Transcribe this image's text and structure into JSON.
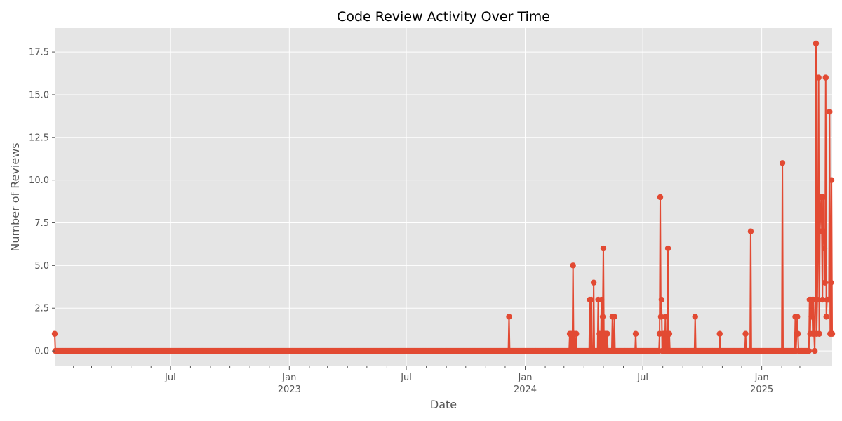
{
  "chart_data": {
    "type": "line",
    "title": "Code Review Activity Over Time",
    "xlabel": "Date",
    "ylabel": "Number of Reviews",
    "xlim": [
      "2022-01-03",
      "2025-04-20"
    ],
    "ylim": [
      -0.9,
      18.9
    ],
    "y_ticks": [
      0.0,
      2.5,
      5.0,
      7.5,
      10.0,
      12.5,
      15.0,
      17.5
    ],
    "y_tick_labels": [
      "0.0",
      "2.5",
      "5.0",
      "7.5",
      "10.0",
      "12.5",
      "15.0",
      "17.5"
    ],
    "x_major_ticks": [
      {
        "date": "2022-07-01",
        "label": "Jul",
        "year": ""
      },
      {
        "date": "2023-01-01",
        "label": "Jan",
        "year": "2023"
      },
      {
        "date": "2023-07-01",
        "label": "Jul",
        "year": ""
      },
      {
        "date": "2024-01-01",
        "label": "Jan",
        "year": "2024"
      },
      {
        "date": "2024-07-01",
        "label": "Jul",
        "year": ""
      },
      {
        "date": "2025-01-01",
        "label": "Jan",
        "year": "2025"
      }
    ],
    "baseline_value": 0,
    "grid": true,
    "colors": {
      "line": "#E24A33",
      "plot_bg": "#E5E5E5",
      "grid": "#FFFFFF"
    },
    "series": [
      {
        "points": [
          [
            "2022-01-03",
            1
          ],
          [
            "2022-01-04",
            0
          ],
          [
            "2023-12-07",
            2
          ],
          [
            "2024-03-10",
            1
          ],
          [
            "2024-03-12",
            1
          ],
          [
            "2024-03-15",
            5
          ],
          [
            "2024-03-17",
            1
          ],
          [
            "2024-03-20",
            1
          ],
          [
            "2024-04-10",
            3
          ],
          [
            "2024-04-12",
            3
          ],
          [
            "2024-04-16",
            4
          ],
          [
            "2024-04-23",
            3
          ],
          [
            "2024-04-25",
            1
          ],
          [
            "2024-04-28",
            3
          ],
          [
            "2024-04-30",
            2
          ],
          [
            "2024-05-01",
            6
          ],
          [
            "2024-05-03",
            1
          ],
          [
            "2024-05-05",
            1
          ],
          [
            "2024-05-07",
            1
          ],
          [
            "2024-05-15",
            2
          ],
          [
            "2024-05-18",
            2
          ],
          [
            "2024-06-20",
            1
          ],
          [
            "2024-07-27",
            1
          ],
          [
            "2024-07-28",
            9
          ],
          [
            "2024-07-29",
            2
          ],
          [
            "2024-07-30",
            3
          ],
          [
            "2024-08-02",
            1
          ],
          [
            "2024-08-05",
            2
          ],
          [
            "2024-08-07",
            1
          ],
          [
            "2024-08-09",
            6
          ],
          [
            "2024-08-11",
            1
          ],
          [
            "2024-09-20",
            2
          ],
          [
            "2024-10-28",
            1
          ],
          [
            "2024-12-07",
            1
          ],
          [
            "2024-12-15",
            7
          ],
          [
            "2025-02-02",
            11
          ],
          [
            "2025-02-22",
            2
          ],
          [
            "2025-02-24",
            1
          ],
          [
            "2025-02-25",
            2
          ],
          [
            "2025-02-26",
            1
          ],
          [
            "2025-03-16",
            3
          ],
          [
            "2025-03-17",
            1
          ],
          [
            "2025-03-18",
            3
          ],
          [
            "2025-03-19",
            2
          ],
          [
            "2025-03-20",
            3
          ],
          [
            "2025-03-21",
            1
          ],
          [
            "2025-03-22",
            3
          ],
          [
            "2025-03-23",
            1
          ],
          [
            "2025-03-25",
            3
          ],
          [
            "2025-03-26",
            18
          ],
          [
            "2025-03-27",
            1
          ],
          [
            "2025-03-28",
            3
          ],
          [
            "2025-03-29",
            7
          ],
          [
            "2025-03-30",
            16
          ],
          [
            "2025-03-31",
            1
          ],
          [
            "2025-04-01",
            7
          ],
          [
            "2025-04-02",
            8
          ],
          [
            "2025-04-03",
            9
          ],
          [
            "2025-04-04",
            7
          ],
          [
            "2025-04-05",
            3
          ],
          [
            "2025-04-06",
            9
          ],
          [
            "2025-04-07",
            7
          ],
          [
            "2025-04-08",
            6
          ],
          [
            "2025-04-09",
            4
          ],
          [
            "2025-04-10",
            16
          ],
          [
            "2025-04-11",
            2
          ],
          [
            "2025-04-12",
            3
          ],
          [
            "2025-04-13",
            3
          ],
          [
            "2025-04-14",
            3
          ],
          [
            "2025-04-15",
            3
          ],
          [
            "2025-04-16",
            14
          ],
          [
            "2025-04-17",
            1
          ],
          [
            "2025-04-18",
            4
          ],
          [
            "2025-04-19",
            10
          ],
          [
            "2025-04-20",
            1
          ]
        ]
      }
    ]
  }
}
